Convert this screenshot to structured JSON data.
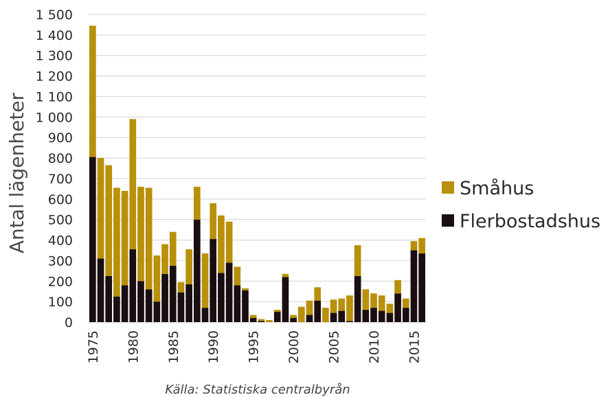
{
  "chart_data": {
    "type": "bar",
    "stacked": true,
    "ylabel": "Antal lägenheter",
    "source": "Källa: Statistiska centralbyrån",
    "ylim": [
      0,
      1500
    ],
    "y_ticks": [
      "0",
      "100",
      "200",
      "300",
      "400",
      "500",
      "600",
      "700",
      "800",
      "900",
      "1 000",
      "1 100",
      "1 200",
      "1 300",
      "1 400",
      "1 500"
    ],
    "x_tick_labels": [
      "1975",
      "1980",
      "1985",
      "1990",
      "1995",
      "2000",
      "2005",
      "2010",
      "2015"
    ],
    "grid": true,
    "legend_position": "right",
    "categories": [
      1975,
      1976,
      1977,
      1978,
      1979,
      1980,
      1981,
      1982,
      1983,
      1984,
      1985,
      1986,
      1987,
      1988,
      1989,
      1990,
      1991,
      1992,
      1993,
      1994,
      1995,
      1996,
      1997,
      1998,
      1999,
      2000,
      2001,
      2002,
      2003,
      2004,
      2005,
      2006,
      2007,
      2008,
      2009,
      2010,
      2011,
      2012,
      2013,
      2014,
      2015,
      2016
    ],
    "series": [
      {
        "name": "Flerbostadshus",
        "color": "#1a0e10",
        "values": [
          805,
          310,
          225,
          125,
          180,
          355,
          200,
          160,
          100,
          235,
          275,
          145,
          185,
          500,
          70,
          405,
          240,
          290,
          180,
          155,
          20,
          5,
          0,
          50,
          220,
          20,
          0,
          35,
          105,
          0,
          45,
          55,
          5,
          225,
          60,
          70,
          55,
          45,
          140,
          70,
          350,
          335
        ]
      },
      {
        "name": "Småhus",
        "color": "#b8900b",
        "values": [
          640,
          490,
          540,
          530,
          460,
          635,
          460,
          495,
          225,
          145,
          165,
          50,
          170,
          160,
          265,
          175,
          280,
          200,
          90,
          10,
          15,
          10,
          10,
          10,
          15,
          15,
          75,
          70,
          65,
          70,
          65,
          60,
          125,
          150,
          100,
          70,
          75,
          45,
          65,
          45,
          45,
          75
        ]
      }
    ]
  }
}
